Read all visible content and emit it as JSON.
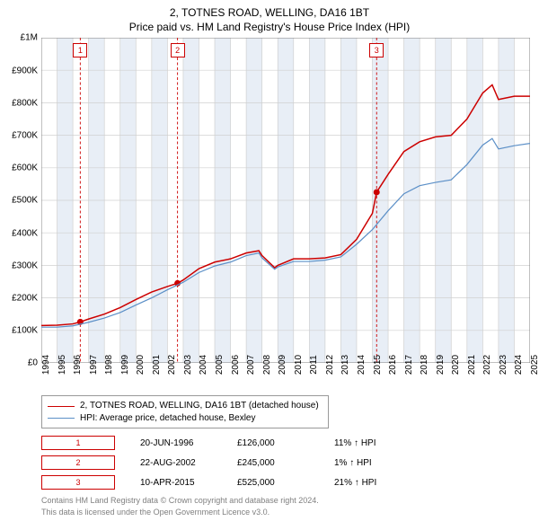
{
  "title_line1": "2, TOTNES ROAD, WELLING, DA16 1BT",
  "title_line2": "Price paid vs. HM Land Registry's House Price Index (HPI)",
  "chart": {
    "type": "line",
    "background_color": "#ffffff",
    "grid_color": "#d0d0d0",
    "axis_color": "#808080",
    "x_years": [
      1994,
      1995,
      1996,
      1997,
      1998,
      1999,
      2000,
      2001,
      2002,
      2003,
      2004,
      2005,
      2006,
      2007,
      2008,
      2009,
      2010,
      2011,
      2012,
      2013,
      2014,
      2015,
      2016,
      2017,
      2018,
      2019,
      2020,
      2021,
      2022,
      2023,
      2024,
      2025
    ],
    "y_ticks": [
      0,
      100000,
      200000,
      300000,
      400000,
      500000,
      600000,
      700000,
      800000,
      900000,
      1000000
    ],
    "y_tick_labels": [
      "£0",
      "£100K",
      "£200K",
      "£300K",
      "£400K",
      "£500K",
      "£600K",
      "£700K",
      "£800K",
      "£900K",
      "£1M"
    ],
    "xlim": [
      1994,
      2025
    ],
    "ylim": [
      0,
      1000000
    ],
    "series": [
      {
        "name": "2, TOTNES ROAD, WELLING, DA16 1BT (detached house)",
        "color": "#cc0000",
        "width": 1.5,
        "points": [
          [
            1994,
            115000
          ],
          [
            1995,
            116000
          ],
          [
            1996,
            120000
          ],
          [
            1996.47,
            126000
          ],
          [
            1997,
            135000
          ],
          [
            1998,
            150000
          ],
          [
            1999,
            170000
          ],
          [
            2000,
            195000
          ],
          [
            2001,
            218000
          ],
          [
            2002,
            235000
          ],
          [
            2002.64,
            245000
          ],
          [
            2003,
            255000
          ],
          [
            2004,
            290000
          ],
          [
            2005,
            310000
          ],
          [
            2006,
            320000
          ],
          [
            2007,
            338000
          ],
          [
            2007.8,
            345000
          ],
          [
            2008,
            330000
          ],
          [
            2008.8,
            293000
          ],
          [
            2009,
            300000
          ],
          [
            2010,
            320000
          ],
          [
            2011,
            320000
          ],
          [
            2012,
            323000
          ],
          [
            2013,
            333000
          ],
          [
            2014,
            380000
          ],
          [
            2015,
            460000
          ],
          [
            2015.27,
            525000
          ],
          [
            2016,
            580000
          ],
          [
            2017,
            650000
          ],
          [
            2018,
            680000
          ],
          [
            2019,
            695000
          ],
          [
            2020,
            700000
          ],
          [
            2021,
            750000
          ],
          [
            2022,
            830000
          ],
          [
            2022.6,
            855000
          ],
          [
            2023,
            810000
          ],
          [
            2024,
            820000
          ],
          [
            2025,
            820000
          ]
        ]
      },
      {
        "name": "HPI: Average price, detached house, Bexley",
        "color": "#5b8fc7",
        "width": 1.2,
        "points": [
          [
            1994,
            110000
          ],
          [
            1995,
            110000
          ],
          [
            1996,
            114000
          ],
          [
            1997,
            125000
          ],
          [
            1998,
            138000
          ],
          [
            1999,
            155000
          ],
          [
            2000,
            178000
          ],
          [
            2001,
            200000
          ],
          [
            2002,
            225000
          ],
          [
            2003,
            248000
          ],
          [
            2004,
            278000
          ],
          [
            2005,
            298000
          ],
          [
            2006,
            310000
          ],
          [
            2007,
            330000
          ],
          [
            2007.8,
            338000
          ],
          [
            2008,
            323000
          ],
          [
            2008.8,
            288000
          ],
          [
            2009,
            295000
          ],
          [
            2010,
            312000
          ],
          [
            2011,
            312000
          ],
          [
            2012,
            316000
          ],
          [
            2013,
            326000
          ],
          [
            2014,
            365000
          ],
          [
            2015,
            410000
          ],
          [
            2016,
            468000
          ],
          [
            2017,
            520000
          ],
          [
            2018,
            545000
          ],
          [
            2019,
            555000
          ],
          [
            2020,
            563000
          ],
          [
            2021,
            610000
          ],
          [
            2022,
            670000
          ],
          [
            2022.6,
            690000
          ],
          [
            2023,
            658000
          ],
          [
            2024,
            668000
          ],
          [
            2025,
            675000
          ]
        ]
      }
    ],
    "event_markers": [
      {
        "n": "1",
        "year": 1996.47,
        "value": 126000,
        "color": "#cc0000"
      },
      {
        "n": "2",
        "year": 2002.64,
        "value": 245000,
        "color": "#cc0000"
      },
      {
        "n": "3",
        "year": 2015.27,
        "value": 525000,
        "color": "#cc0000"
      }
    ],
    "vline_color": "#cc0000",
    "vband_color": "#e8eef6"
  },
  "legend": [
    {
      "label": "2, TOTNES ROAD, WELLING, DA16 1BT (detached house)",
      "color": "#cc0000"
    },
    {
      "label": "HPI: Average price, detached house, Bexley",
      "color": "#5b8fc7"
    }
  ],
  "events": [
    {
      "n": "1",
      "date": "20-JUN-1996",
      "price": "£126,000",
      "delta": "11% ↑ HPI",
      "color": "#cc0000"
    },
    {
      "n": "2",
      "date": "22-AUG-2002",
      "price": "£245,000",
      "delta": "1% ↑ HPI",
      "color": "#cc0000"
    },
    {
      "n": "3",
      "date": "10-APR-2015",
      "price": "£525,000",
      "delta": "21% ↑ HPI",
      "color": "#cc0000"
    }
  ],
  "footnote_line1": "Contains HM Land Registry data © Crown copyright and database right 2024.",
  "footnote_line2": "This data is licensed under the Open Government Licence v3.0."
}
